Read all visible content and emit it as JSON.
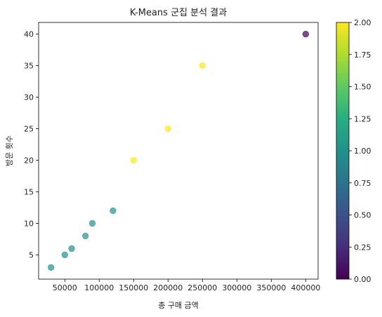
{
  "chart_data": {
    "type": "scatter",
    "title": "K-Means 군집 분석 결과",
    "xlabel": "총 구매 금액",
    "ylabel": "방문 횟수",
    "xlim": [
      12000,
      418000
    ],
    "ylim": [
      1.15,
      41.85
    ],
    "xticks": [
      50000,
      100000,
      150000,
      200000,
      250000,
      300000,
      350000,
      400000
    ],
    "yticks": [
      5,
      10,
      15,
      20,
      25,
      30,
      35,
      40
    ],
    "grid": false,
    "colormap": "viridis",
    "point_alpha": 0.7,
    "points": [
      {
        "x": 30000,
        "y": 3,
        "cluster": 1
      },
      {
        "x": 50000,
        "y": 5,
        "cluster": 1
      },
      {
        "x": 60000,
        "y": 6,
        "cluster": 1
      },
      {
        "x": 80000,
        "y": 8,
        "cluster": 1
      },
      {
        "x": 90000,
        "y": 10,
        "cluster": 1
      },
      {
        "x": 120000,
        "y": 12,
        "cluster": 1
      },
      {
        "x": 150000,
        "y": 20,
        "cluster": 2
      },
      {
        "x": 200000,
        "y": 25,
        "cluster": 2
      },
      {
        "x": 250000,
        "y": 35,
        "cluster": 2
      },
      {
        "x": 400000,
        "y": 40,
        "cluster": 0
      }
    ],
    "colorbar": {
      "range": [
        0,
        2
      ],
      "ticks": [
        "0.00",
        "0.25",
        "0.50",
        "0.75",
        "1.00",
        "1.25",
        "1.50",
        "1.75",
        "2.00"
      ],
      "colors": [
        "#440154",
        "#21918c",
        "#fde725"
      ]
    }
  }
}
